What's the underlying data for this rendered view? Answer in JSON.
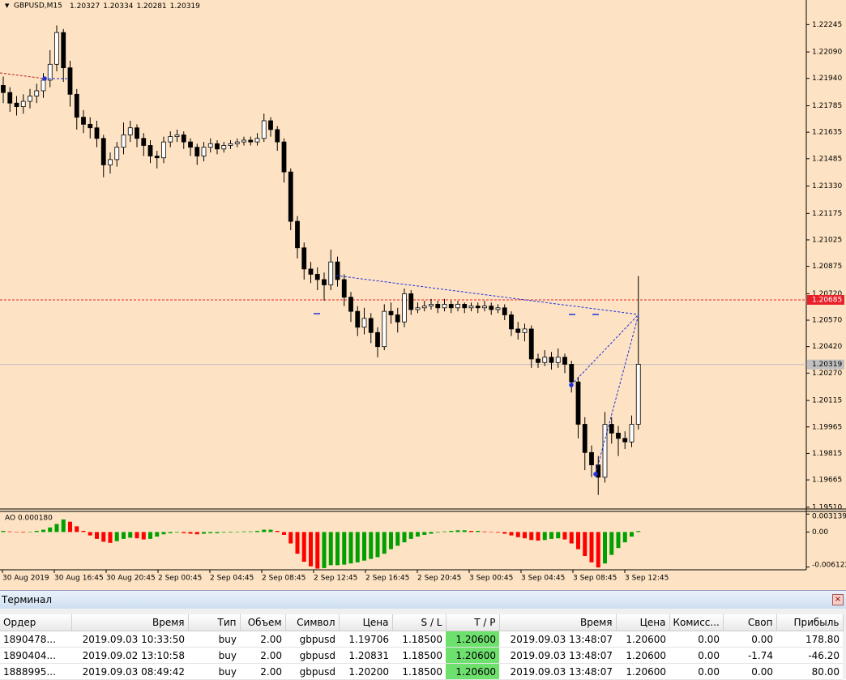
{
  "chart_data": {
    "type": "candlestick",
    "symbol": "GBPUSD,M15",
    "quote": [
      1.20327,
      1.20334,
      1.20281,
      1.20319
    ],
    "open": [
      1.219,
      1.2186,
      1.218,
      1.2178,
      1.2181,
      1.2184,
      1.2187,
      1.2193,
      1.2202,
      1.222,
      1.22,
      1.2185,
      1.2172,
      1.2168,
      1.2166,
      1.216,
      1.2145,
      1.2148,
      1.2155,
      1.2162,
      1.2166,
      1.216,
      1.2156,
      1.215,
      1.2149,
      1.2158,
      1.2161,
      1.2162,
      1.2158,
      1.2155,
      1.215,
      1.2155,
      1.2157,
      1.2154,
      1.2156,
      1.2157,
      1.2158,
      1.2159,
      1.2158,
      1.216,
      1.217,
      1.2165,
      1.2158,
      1.2141,
      1.2113,
      1.2098,
      1.2086,
      1.2083,
      1.208,
      1.2077,
      1.209,
      1.208,
      1.207,
      1.2062,
      1.2053,
      1.2058,
      1.205,
      1.2042,
      1.2062,
      1.206,
      1.2056,
      1.2072,
      1.2063,
      1.2064,
      1.2065,
      1.2066,
      1.2064,
      1.2066,
      1.2064,
      1.2066,
      1.2064,
      1.2065,
      1.2064,
      1.2065,
      1.2063,
      1.2064,
      1.206,
      1.2052,
      1.205,
      1.2052,
      1.2035,
      1.2033,
      1.2036,
      1.2033,
      1.2036,
      1.2032,
      1.2022,
      1.1998,
      1.1982,
      1.1975,
      1.1968,
      1.1998,
      1.1993,
      1.199,
      1.1988,
      1.1998
    ],
    "high": [
      1.2195,
      1.2189,
      1.2184,
      1.2185,
      1.2188,
      1.2191,
      1.2197,
      1.221,
      1.2224,
      1.2222,
      1.2204,
      1.2188,
      1.2176,
      1.2172,
      1.217,
      1.2162,
      1.2152,
      1.2158,
      1.2169,
      1.217,
      1.2168,
      1.2163,
      1.2159,
      1.2153,
      1.2161,
      1.2164,
      1.2165,
      1.2164,
      1.216,
      1.2157,
      1.2158,
      1.216,
      1.2159,
      1.2158,
      1.2159,
      1.216,
      1.2161,
      1.2161,
      1.2163,
      1.2174,
      1.2172,
      1.2167,
      1.216,
      1.2143,
      1.2116,
      1.2101,
      1.209,
      1.2087,
      1.2084,
      1.2097,
      1.2093,
      1.2083,
      1.2073,
      1.2065,
      1.2064,
      1.2061,
      1.2053,
      1.2066,
      1.2067,
      1.2064,
      1.2075,
      1.2074,
      1.2067,
      1.2068,
      1.2069,
      1.2068,
      1.2069,
      1.2068,
      1.2068,
      1.2067,
      1.2067,
      1.2067,
      1.2068,
      1.2067,
      1.2066,
      1.2066,
      1.2062,
      1.2056,
      1.2055,
      1.2054,
      1.2038,
      1.204,
      1.2039,
      1.2041,
      1.2038,
      1.2034,
      1.2025,
      1.2002,
      1.1986,
      1.198,
      1.2005,
      1.2002,
      1.1997,
      1.1994,
      1.2003,
      1.2082
    ],
    "low": [
      1.218,
      1.2175,
      1.2173,
      1.2174,
      1.2177,
      1.218,
      1.2183,
      1.2189,
      1.2198,
      1.2192,
      1.2178,
      1.2165,
      1.2163,
      1.216,
      1.2155,
      1.2138,
      1.214,
      1.2144,
      1.2151,
      1.2158,
      1.2155,
      1.215,
      1.2146,
      1.2143,
      1.2146,
      1.2155,
      1.2158,
      1.2154,
      1.215,
      1.2145,
      1.2147,
      1.2152,
      1.2151,
      1.2152,
      1.2154,
      1.2155,
      1.2156,
      1.2156,
      1.2156,
      1.2158,
      1.2161,
      1.2153,
      1.2135,
      1.2108,
      1.2092,
      1.208,
      1.2078,
      1.2074,
      1.2068,
      1.2074,
      1.2076,
      1.2065,
      1.2056,
      1.2048,
      1.2049,
      1.2044,
      1.2036,
      1.204,
      1.2055,
      1.205,
      1.2053,
      1.206,
      1.2061,
      1.2062,
      1.2063,
      1.2061,
      1.2062,
      1.2061,
      1.2062,
      1.2061,
      1.2062,
      1.2061,
      1.2062,
      1.206,
      1.2061,
      1.2057,
      1.2048,
      1.2046,
      1.2045,
      1.203,
      1.203,
      1.2031,
      1.2029,
      1.203,
      1.2027,
      1.2016,
      1.199,
      1.1972,
      1.1968,
      1.1958,
      1.1965,
      1.1987,
      1.198,
      1.1984,
      1.1985,
      1.1995
    ],
    "close": [
      1.2186,
      1.218,
      1.2178,
      1.2181,
      1.2184,
      1.2187,
      1.2193,
      1.2202,
      1.222,
      1.22,
      1.2185,
      1.2172,
      1.2168,
      1.2166,
      1.216,
      1.2145,
      1.2148,
      1.2155,
      1.2162,
      1.2166,
      1.216,
      1.2156,
      1.215,
      1.2149,
      1.2158,
      1.2161,
      1.2162,
      1.2158,
      1.2155,
      1.215,
      1.2155,
      1.2157,
      1.2154,
      1.2156,
      1.2157,
      1.2158,
      1.2159,
      1.2158,
      1.216,
      1.217,
      1.2165,
      1.2158,
      1.2141,
      1.2113,
      1.2098,
      1.2086,
      1.2083,
      1.208,
      1.2077,
      1.209,
      1.208,
      1.207,
      1.2062,
      1.2053,
      1.2058,
      1.205,
      1.2042,
      1.2062,
      1.206,
      1.2056,
      1.2072,
      1.2063,
      1.2064,
      1.2065,
      1.2066,
      1.2064,
      1.2066,
      1.2064,
      1.2066,
      1.2064,
      1.2065,
      1.2064,
      1.2065,
      1.2063,
      1.2064,
      1.206,
      1.2052,
      1.205,
      1.2052,
      1.2035,
      1.2033,
      1.2036,
      1.2033,
      1.2036,
      1.2032,
      1.2022,
      1.1998,
      1.1982,
      1.1975,
      1.1968,
      1.1998,
      1.1993,
      1.199,
      1.1988,
      1.1998,
      1.2032
    ],
    "ylim": [
      1.195,
      1.2232
    ],
    "yticks": [
      1.22245,
      {
        "value": 1.2209,
        "label": "1.22090"
      },
      {
        "value": 1.2194,
        "label": "1.21940"
      },
      1.21785,
      1.21635,
      1.21485,
      {
        "value": 1.2133,
        "label": "1.21330"
      },
      1.21175,
      1.21025,
      1.20875,
      {
        "value": 1.2072,
        "label": "1.20720"
      },
      {
        "value": 1.2057,
        "label": "1.20570"
      },
      {
        "value": 1.2042,
        "label": "1.20420"
      },
      {
        "value": 1.2027,
        "label": "1.20270"
      },
      1.20115,
      1.19965,
      1.19815,
      1.19665,
      {
        "value": 1.1951,
        "label": "1.19510"
      }
    ],
    "price_lines": [
      {
        "value": 1.20685,
        "color": "#e8202a"
      },
      {
        "value": 1.20319,
        "color": "#c0c0c0"
      }
    ],
    "x_labels": [
      "30 Aug 2019",
      "30 Aug 16:45",
      "30 Aug 20:45",
      "2 Sep 00:45",
      "2 Sep 04:45",
      "2 Sep 08:45",
      "2 Sep 12:45",
      "2 Sep 16:45",
      "2 Sep 20:45",
      "3 Sep 00:45",
      "3 Sep 04:45",
      "3 Sep 08:45",
      "3 Sep 12:45"
    ],
    "indicator": {
      "title": "AO 0.000180",
      "up_color": "#00a000",
      "down_color": "#ff0000",
      "ylim": [
        -0.0066,
        0.0036
      ],
      "yticks": [
        0.003139,
        {
          "value": 0,
          "label": "0.00"
        },
        -0.006122
      ],
      "values": [
        0.0002,
        0.0001,
        0.0,
        -0.0001,
        0.0,
        0.0002,
        0.0004,
        0.0008,
        0.0014,
        0.0022,
        0.0018,
        0.001,
        0.0002,
        -0.0006,
        -0.0012,
        -0.0017,
        -0.0019,
        -0.0016,
        -0.0012,
        -0.001,
        -0.0011,
        -0.0013,
        -0.0012,
        -0.0008,
        -0.0004,
        -0.0002,
        -0.0001,
        -0.0002,
        -0.0003,
        -0.0004,
        -0.0003,
        -0.0002,
        -0.0002,
        -0.0001,
        -0.0001,
        0.0,
        0.0001,
        0.0001,
        0.0002,
        0.0004,
        0.0004,
        0.0002,
        -0.0005,
        -0.002,
        -0.0038,
        -0.0052,
        -0.006,
        -0.0064,
        -0.0063,
        -0.0058,
        -0.0058,
        -0.0057,
        -0.0055,
        -0.0053,
        -0.005,
        -0.0047,
        -0.0044,
        -0.0038,
        -0.003,
        -0.0024,
        -0.0018,
        -0.0012,
        -0.0008,
        -0.0005,
        -0.0003,
        -0.0001,
        0.0001,
        0.0002,
        0.0003,
        0.0003,
        0.0002,
        0.0002,
        0.0001,
        0.0,
        -0.0001,
        -0.0003,
        -0.0006,
        -0.0009,
        -0.0011,
        -0.0014,
        -0.0015,
        -0.0014,
        -0.0012,
        -0.0011,
        -0.0013,
        -0.002,
        -0.003,
        -0.0042,
        -0.0053,
        -0.0062,
        -0.0055,
        -0.004,
        -0.0028,
        -0.0018,
        -0.0008,
        0.00018
      ]
    }
  },
  "terminal": {
    "title": "Терминал",
    "columns": [
      "Ордер",
      "Время",
      "Тип",
      "Объем",
      "Символ",
      "Цена",
      "S / L",
      "T / P",
      "Время",
      "Цена",
      "Комисс...",
      "Своп",
      "Прибыль"
    ],
    "rows": [
      [
        "1890478...",
        "2019.09.03 10:33:50",
        "buy",
        "2.00",
        "gbpusd",
        "1.19706",
        "1.18500",
        "1.20600",
        "2019.09.03 13:48:07",
        "1.20600",
        "0.00",
        "0.00",
        "178.80"
      ],
      [
        "1890404...",
        "2019.09.02 13:10:58",
        "buy",
        "2.00",
        "gbpusd",
        "1.20831",
        "1.18500",
        "1.20600",
        "2019.09.03 13:48:07",
        "1.20600",
        "0.00",
        "-1.74",
        "-46.20"
      ],
      [
        "1888995...",
        "2019.09.03 08:49:42",
        "buy",
        "2.00",
        "gbpusd",
        "1.20200",
        "1.18500",
        "1.20600",
        "2019.09.03 13:48:07",
        "1.20600",
        "0.00",
        "0.00",
        "80.00"
      ]
    ]
  }
}
